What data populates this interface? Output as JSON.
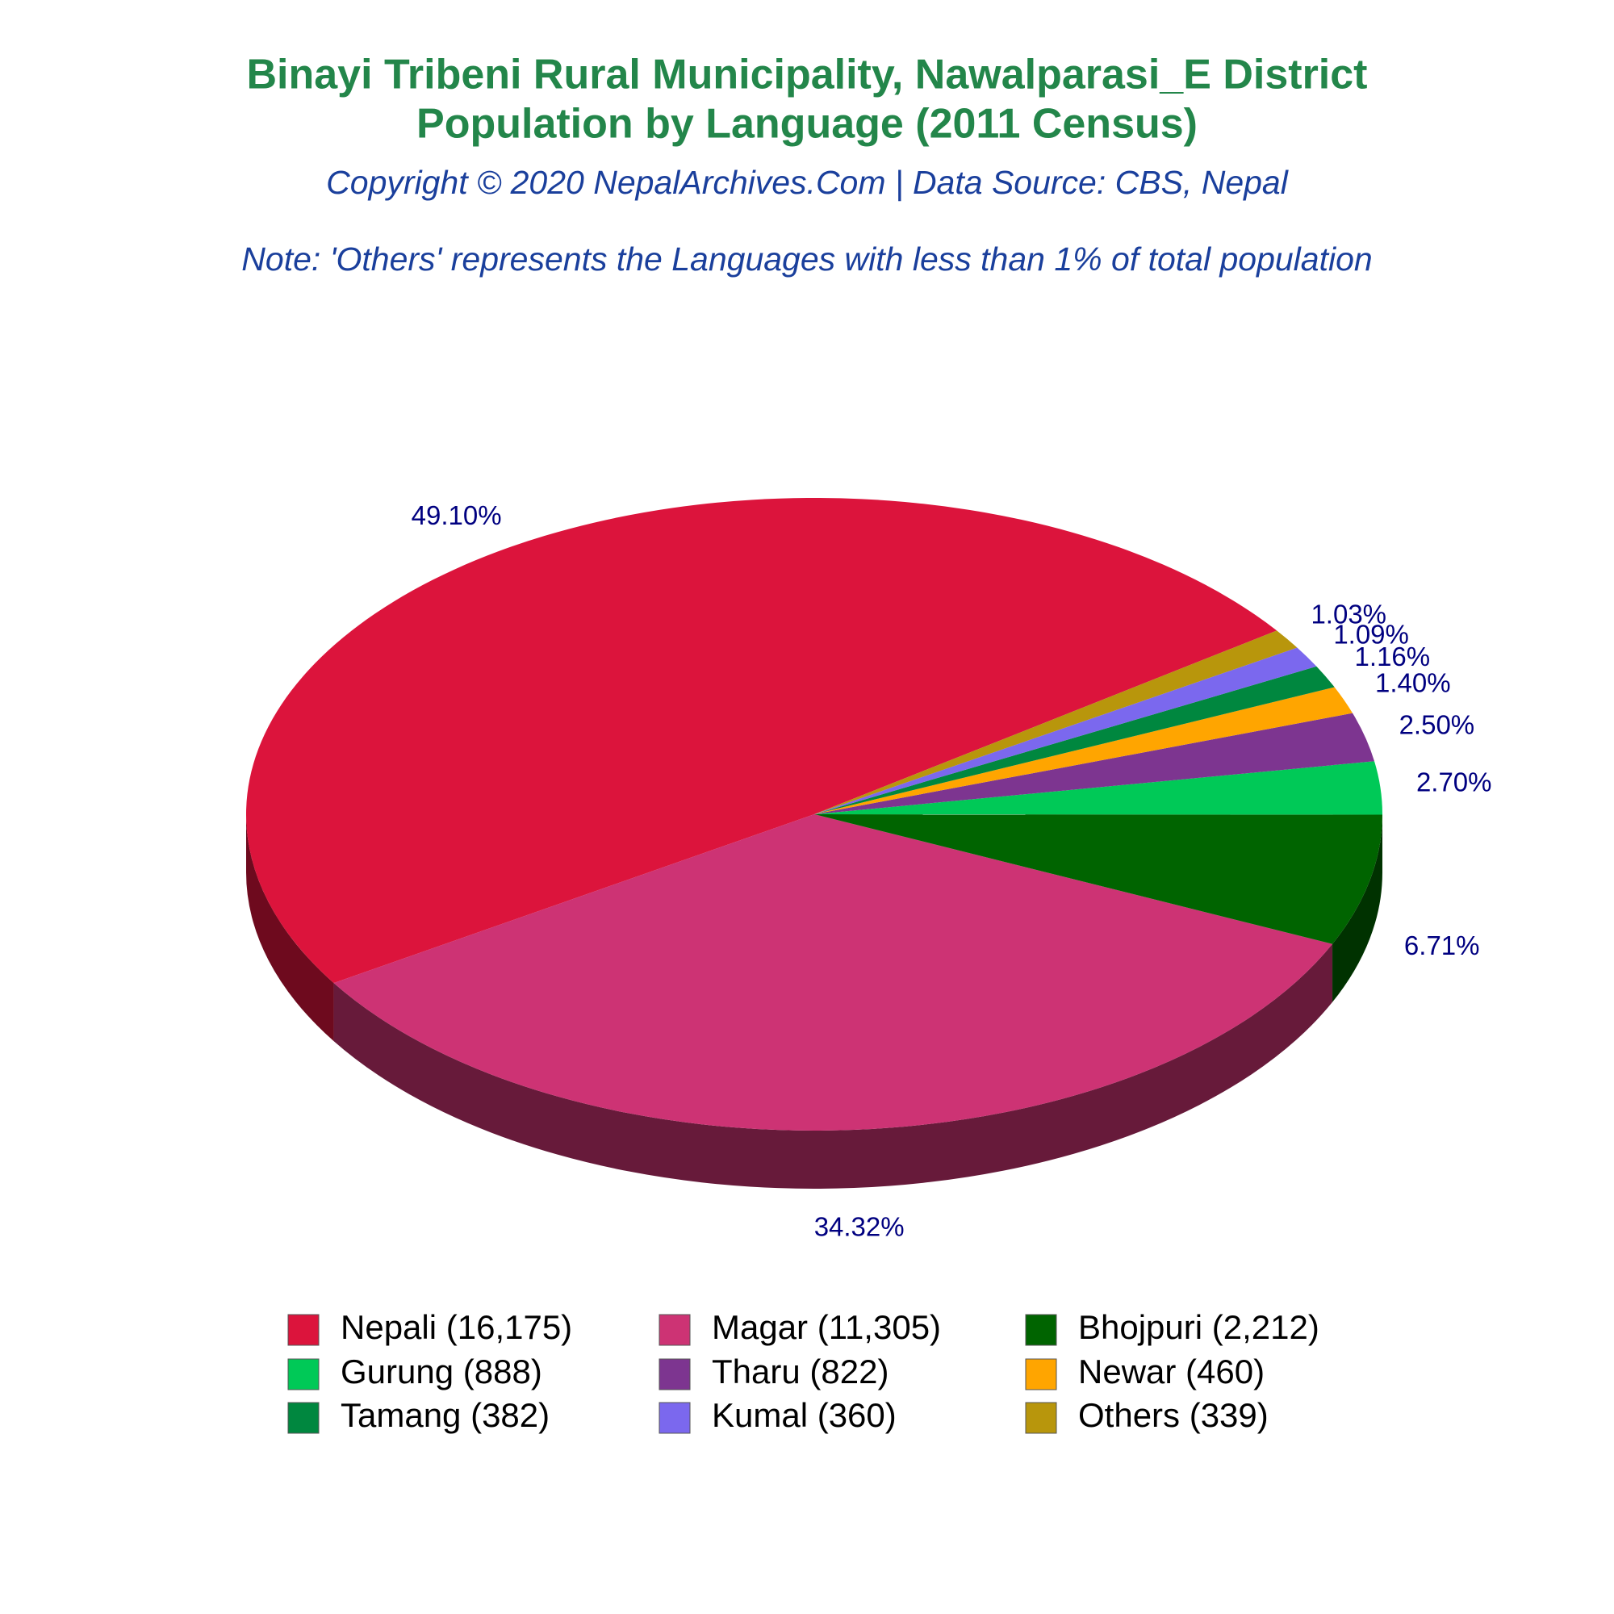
{
  "chart_data": {
    "type": "pie",
    "title": [
      "Binayi Tribeni Rural Municipality, Nawalparasi_E District",
      "Population by Language (2011 Census)"
    ],
    "subtitle": "Copyright © 2020 NepalArchives.Com | Data Source: CBS, Nepal",
    "note": "Note: 'Others' represents the Languages with less than 1% of total population",
    "categories": [
      "Nepali (16,175)",
      "Magar (11,305)",
      "Bhojpuri (2,212)",
      "Gurung (888)",
      "Tharu (822)",
      "Newar (460)",
      "Tamang (382)",
      "Kumal (360)",
      "Others (339)"
    ],
    "values": [
      49.1,
      34.32,
      6.71,
      2.7,
      2.5,
      1.4,
      1.16,
      1.09,
      1.03
    ],
    "value_labels": [
      "49.10%",
      "34.32%",
      "6.71%",
      "2.70%",
      "2.50%",
      "1.40%",
      "1.16%",
      "1.09%",
      "1.03%"
    ],
    "colors": [
      "#dc143c",
      "#cd3374",
      "#006400",
      "#00c957",
      "#7d3590",
      "#ffa500",
      "#00873f",
      "#7b68ee",
      "#b8960c"
    ]
  }
}
